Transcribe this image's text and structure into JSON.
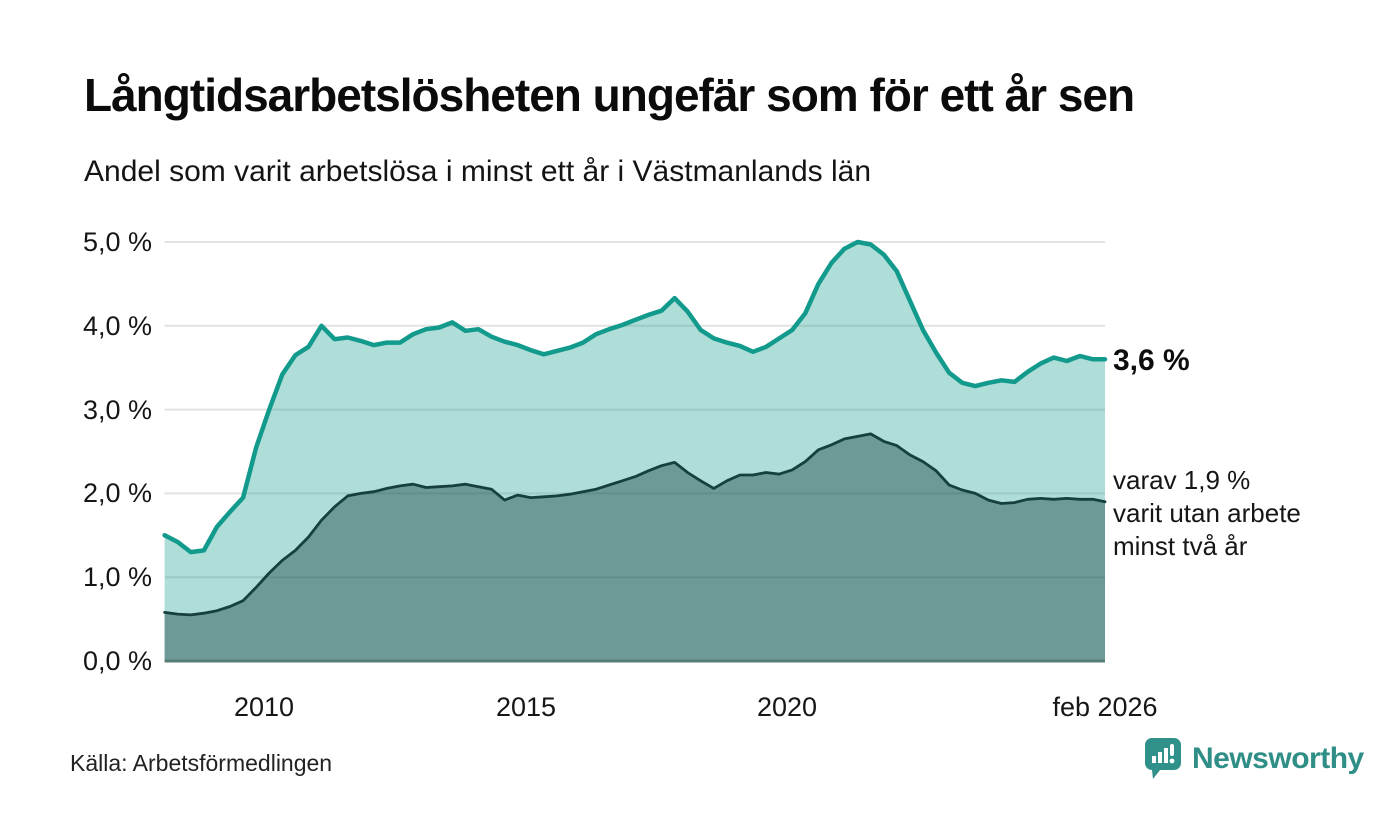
{
  "header": {
    "title": "Långtidsarbetslösheten ungefär som för ett år sen",
    "subtitle": "Andel som varit arbetslösa i minst ett år i Västmanlands län"
  },
  "annotations": {
    "primary_value": "3,6 %",
    "secondary_lines": [
      "varav 1,9 %",
      "varit utan arbete",
      "minst två år"
    ]
  },
  "footer": {
    "source": "Källa: Arbetsförmedlingen",
    "brand": "Newsworthy"
  },
  "colors": {
    "line_1yr": "#129a8c",
    "fill_1yr": "rgba(20,154,141,0.34)",
    "line_2yr": "#16403d",
    "fill_2yr": "rgba(20,63,60,0.42)",
    "gridline": "#e2e2e2",
    "baseline": "#567f7a",
    "brand_teal": "#2f8e86",
    "background": "#ffffff"
  },
  "chart_data": {
    "type": "area",
    "title": "Andel som varit arbetslösa i minst ett år i Västmanlands län",
    "xlabel": "",
    "ylabel": "",
    "x_unit": "decimal_year",
    "xlim": [
      2008.1,
      2026.08
    ],
    "ylim": [
      0,
      5
    ],
    "grid": true,
    "legend_position": "direct-labels-right",
    "x": [
      2008.1,
      2008.35,
      2008.6,
      2008.85,
      2009.1,
      2009.35,
      2009.6,
      2009.85,
      2010.1,
      2010.35,
      2010.6,
      2010.85,
      2011.1,
      2011.35,
      2011.6,
      2011.85,
      2012.1,
      2012.35,
      2012.6,
      2012.85,
      2013.1,
      2013.35,
      2013.6,
      2013.85,
      2014.1,
      2014.35,
      2014.6,
      2014.85,
      2015.1,
      2015.35,
      2015.6,
      2015.85,
      2016.1,
      2016.35,
      2016.6,
      2016.85,
      2017.1,
      2017.35,
      2017.6,
      2017.85,
      2018.1,
      2018.35,
      2018.6,
      2018.85,
      2019.1,
      2019.35,
      2019.6,
      2019.85,
      2020.1,
      2020.35,
      2020.6,
      2020.85,
      2021.1,
      2021.35,
      2021.6,
      2021.85,
      2022.1,
      2022.35,
      2022.6,
      2022.85,
      2023.1,
      2023.35,
      2023.6,
      2023.85,
      2024.1,
      2024.35,
      2024.6,
      2024.85,
      2025.1,
      2025.35,
      2025.6,
      2025.85,
      2026.08
    ],
    "series": [
      {
        "name": "Arbetslösa minst ett år",
        "final_label": "3,6 %",
        "color": "#129a8c",
        "fill": "rgba(20,154,141,0.34)",
        "stroke_width": 4.5,
        "values": [
          1.5,
          1.42,
          1.3,
          1.32,
          1.6,
          1.78,
          1.95,
          2.55,
          3.0,
          3.42,
          3.65,
          3.75,
          4.0,
          3.84,
          3.86,
          3.82,
          3.77,
          3.8,
          3.8,
          3.9,
          3.96,
          3.98,
          4.04,
          3.94,
          3.96,
          3.87,
          3.81,
          3.77,
          3.71,
          3.66,
          3.7,
          3.74,
          3.8,
          3.9,
          3.96,
          4.01,
          4.07,
          4.13,
          4.18,
          4.33,
          4.17,
          3.95,
          3.85,
          3.8,
          3.76,
          3.69,
          3.75,
          3.85,
          3.95,
          4.15,
          4.5,
          4.75,
          4.92,
          5.0,
          4.97,
          4.85,
          4.65,
          4.3,
          3.95,
          3.68,
          3.44,
          3.32,
          3.28,
          3.32,
          3.35,
          3.33,
          3.45,
          3.55,
          3.62,
          3.58,
          3.64,
          3.6,
          3.6
        ]
      },
      {
        "name": "Arbetslösa minst två år",
        "final_label": "varav 1,9 % varit utan arbete minst två år",
        "color": "#16403d",
        "fill": "rgba(20,63,60,0.42)",
        "stroke_width": 2.8,
        "values": [
          0.58,
          0.56,
          0.55,
          0.57,
          0.6,
          0.65,
          0.72,
          0.88,
          1.05,
          1.2,
          1.32,
          1.48,
          1.68,
          1.84,
          1.97,
          2.0,
          2.02,
          2.06,
          2.09,
          2.11,
          2.07,
          2.08,
          2.09,
          2.11,
          2.08,
          2.05,
          1.92,
          1.98,
          1.95,
          1.96,
          1.97,
          1.99,
          2.02,
          2.05,
          2.1,
          2.15,
          2.2,
          2.27,
          2.33,
          2.37,
          2.25,
          2.15,
          2.06,
          2.15,
          2.22,
          2.22,
          2.25,
          2.23,
          2.28,
          2.38,
          2.52,
          2.58,
          2.65,
          2.68,
          2.71,
          2.62,
          2.57,
          2.46,
          2.38,
          2.27,
          2.1,
          2.04,
          2.0,
          1.92,
          1.88,
          1.89,
          1.93,
          1.94,
          1.93,
          1.94,
          1.93,
          1.93,
          1.9
        ]
      }
    ],
    "y_ticks": [
      {
        "value": 5,
        "label": "5,0 %"
      },
      {
        "value": 4,
        "label": "4,0 %"
      },
      {
        "value": 3,
        "label": "3,0 %"
      },
      {
        "value": 2,
        "label": "2,0 %"
      },
      {
        "value": 1,
        "label": "1,0 %"
      },
      {
        "value": 0,
        "label": "0,0 %"
      }
    ],
    "x_ticks": [
      {
        "value": 2010,
        "label": "2010"
      },
      {
        "value": 2015,
        "label": "2015"
      },
      {
        "value": 2020,
        "label": "2020"
      },
      {
        "value": 2026.08,
        "label": "feb 2026"
      }
    ]
  }
}
